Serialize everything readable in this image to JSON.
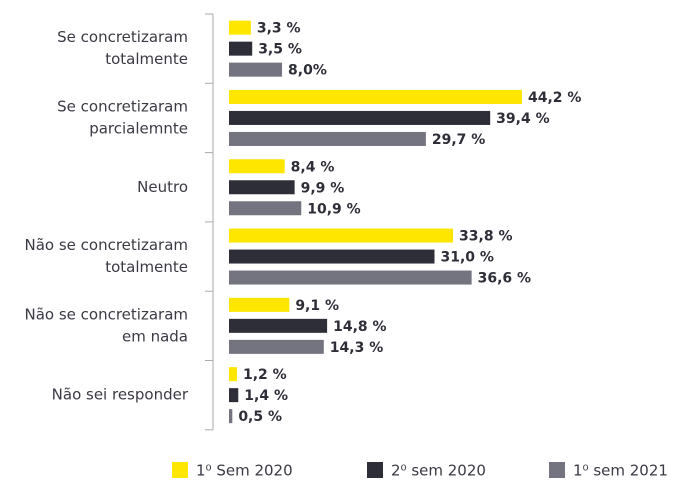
{
  "chart_data": {
    "type": "bar",
    "orientation": "horizontal",
    "categories": [
      [
        "Se concretizaram",
        "totalmente"
      ],
      [
        "Se concretizaram",
        "parcialemnte"
      ],
      [
        "Neutro"
      ],
      [
        "Não se concretizaram",
        "totalmente"
      ],
      [
        "Não se concretizaram",
        "em nada"
      ],
      [
        "Não sei responder"
      ]
    ],
    "series": [
      {
        "name": "1⁰ Sem 2020",
        "color": "#ffe600",
        "values": [
          3.3,
          44.2,
          8.4,
          33.8,
          9.1,
          1.2
        ],
        "value_labels": [
          "3,3 %",
          "44,2 %",
          "8,4 %",
          "33,8 %",
          "9,1 %",
          "1,2 %"
        ]
      },
      {
        "name": "2⁰ sem 2020",
        "color": "#2e2e38",
        "values": [
          3.5,
          39.4,
          9.9,
          31.0,
          14.8,
          1.4
        ],
        "value_labels": [
          "3,5 %",
          "39,4 %",
          "9,9 %",
          "31,0 %",
          "14,8 %",
          "1,4 %"
        ]
      },
      {
        "name": "1⁰ sem 2021",
        "color": "#747480",
        "values": [
          8.0,
          29.7,
          10.9,
          36.6,
          14.3,
          0.5
        ],
        "value_labels": [
          "8,0%",
          "29,7 %",
          "10,9 %",
          "36,6 %",
          "14,3 %",
          "0,5 %"
        ]
      }
    ],
    "legend": "bottom"
  }
}
